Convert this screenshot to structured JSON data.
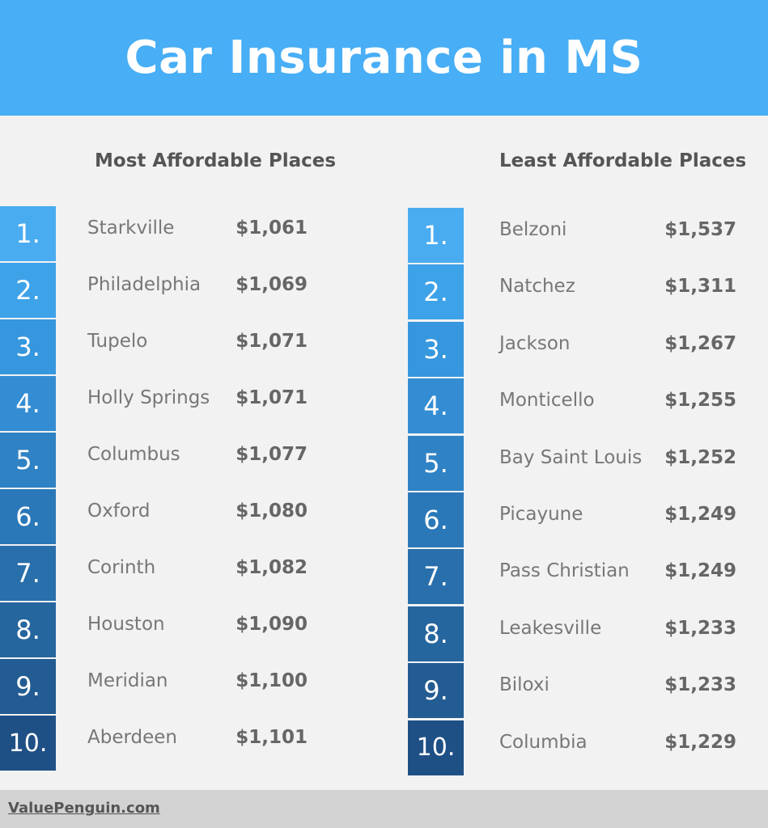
{
  "title": "Car Insurance in MS",
  "most_affordable": {
    "heading": "Most Affordable Places",
    "items": [
      {
        "rank": "1.",
        "city": "Starkville",
        "price": "$1,061"
      },
      {
        "rank": "2.",
        "city": "Philadelphia",
        "price": "$1,069"
      },
      {
        "rank": "3.",
        "city": "Tupelo",
        "price": "$1,071"
      },
      {
        "rank": "4.",
        "city": "Holly Springs",
        "price": "$1,071"
      },
      {
        "rank": "5.",
        "city": "Columbus",
        "price": "$1,077"
      },
      {
        "rank": "6.",
        "city": "Oxford",
        "price": "$1,080"
      },
      {
        "rank": "7.",
        "city": "Corinth",
        "price": "$1,082"
      },
      {
        "rank": "8.",
        "city": "Houston",
        "price": "$1,090"
      },
      {
        "rank": "9.",
        "city": "Meridian",
        "price": "$1,100"
      },
      {
        "rank": "10.",
        "city": "Aberdeen",
        "price": "$1,101"
      }
    ]
  },
  "least_affordable": {
    "heading": "Least Affordable Places",
    "items": [
      {
        "rank": "1.",
        "city": "Belzoni",
        "price": "$1,537"
      },
      {
        "rank": "2.",
        "city": "Natchez",
        "price": "$1,311"
      },
      {
        "rank": "3.",
        "city": "Jackson",
        "price": "$1,267"
      },
      {
        "rank": "4.",
        "city": "Monticello",
        "price": "$1,255"
      },
      {
        "rank": "5.",
        "city": "Bay Saint Louis",
        "price": "$1,252"
      },
      {
        "rank": "6.",
        "city": "Picayune",
        "price": "$1,249"
      },
      {
        "rank": "7.",
        "city": "Pass Christian",
        "price": "$1,249"
      },
      {
        "rank": "8.",
        "city": "Leakesville",
        "price": "$1,233"
      },
      {
        "rank": "9.",
        "city": "Biloxi",
        "price": "$1,233"
      },
      {
        "rank": "10.",
        "city": "Columbia",
        "price": "$1,229"
      }
    ]
  },
  "rank_colors": [
    "#4aacf0",
    "#3ea2e8",
    "#3697de",
    "#348dd2",
    "#2f82c4",
    "#2b78b8",
    "#296fab",
    "#26669f",
    "#235c92",
    "#1f5085"
  ],
  "footer": "ValuePenguin.com"
}
